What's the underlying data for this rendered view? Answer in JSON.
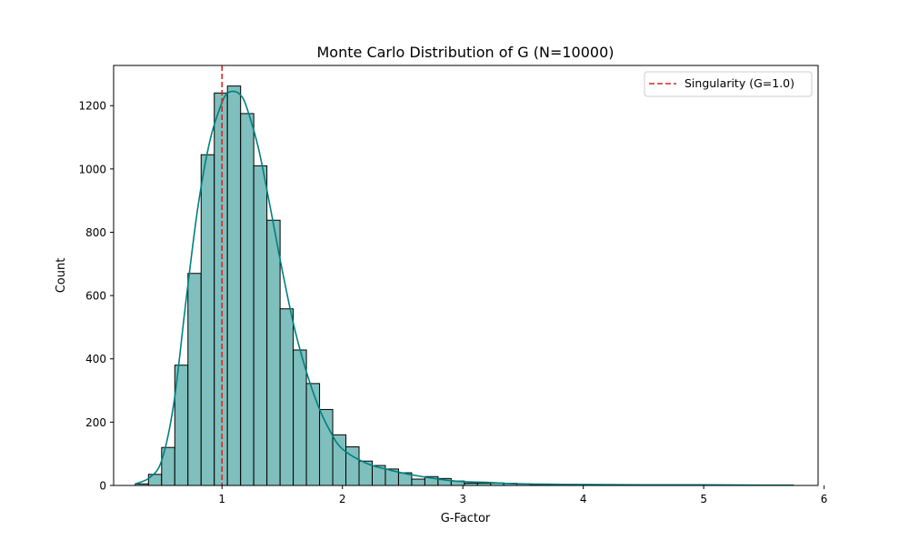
{
  "chart_data": {
    "type": "bar",
    "title": "Monte Carlo Distribution of G (N=10000)",
    "xlabel": "G-Factor",
    "ylabel": "Count",
    "xlim": [
      0.1,
      5.95
    ],
    "ylim": [
      0,
      1327
    ],
    "xticks": [
      1,
      2,
      3,
      4,
      5,
      6
    ],
    "yticks": [
      0,
      200,
      400,
      600,
      800,
      1000,
      1200
    ],
    "grid": false,
    "legend_position": "top-right",
    "bar_color": "#7fbfbd",
    "bar_edge_color": "#000000",
    "kde_color": "#008080",
    "bin_start": 0.28,
    "bin_width": 0.1093,
    "counts": [
      5,
      35,
      120,
      380,
      670,
      1045,
      1240,
      1262,
      1175,
      1010,
      838,
      558,
      428,
      322,
      240,
      160,
      122,
      77,
      63,
      52,
      40,
      20,
      28,
      22,
      14,
      7,
      7,
      8,
      7,
      5,
      3,
      3,
      2,
      2,
      2,
      1,
      1,
      1,
      1,
      1,
      1,
      1,
      1,
      1,
      1,
      1,
      1,
      1,
      1,
      1
    ],
    "kde": {
      "name": "",
      "x": [
        0.28,
        0.4,
        0.5,
        0.6,
        0.7,
        0.8,
        0.9,
        1.0,
        1.05,
        1.1,
        1.15,
        1.2,
        1.3,
        1.4,
        1.5,
        1.6,
        1.7,
        1.8,
        1.9,
        2.0,
        2.2,
        2.4,
        2.6,
        2.8,
        3.0,
        3.2,
        3.4,
        3.7,
        4.0,
        4.5,
        5.0,
        5.5,
        5.75
      ],
      "y": [
        5,
        25,
        80,
        260,
        580,
        880,
        1090,
        1210,
        1240,
        1245,
        1235,
        1200,
        1070,
        880,
        680,
        500,
        360,
        250,
        170,
        115,
        70,
        48,
        32,
        20,
        12,
        10,
        6,
        4,
        3,
        2,
        2,
        1,
        1
      ]
    },
    "reference_line": {
      "x": 1.0,
      "label": "Singularity (G=1.0)",
      "color": "#d62728"
    }
  }
}
